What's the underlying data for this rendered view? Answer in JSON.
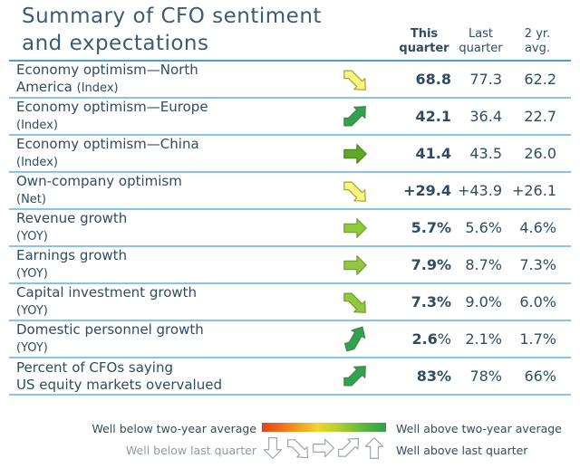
{
  "title": {
    "line1": "Summary of CFO sentiment",
    "line2": "and expectations"
  },
  "header": {
    "this_quarter": "This\nquarter",
    "last_quarter": "Last\nquarter",
    "two_yr_avg": "2 yr.\navg."
  },
  "colors": {
    "title_text": "#3b5c77",
    "body_text": "#2e4d63",
    "header_rule": "#4a9fd4",
    "row_rule": "#8ac4ea",
    "muted_text": "#8e9ca9",
    "arrow_yellow": "#f8f67d",
    "arrow_green": "#2ea44d",
    "arrow_olive": "#5fa821",
    "arrow_yellow_green": "#92c83e"
  },
  "table": {
    "rows": [
      {
        "line1": "Economy optimism—North",
        "line2": "America",
        "note": "(Index)",
        "icon": {
          "name": "arrow-down-right-icon",
          "shape": "bent-down-right",
          "fill": "#f8f67d",
          "stroke": "#a2a23f",
          "rotate": 0
        },
        "tq": "68.8",
        "tq_suffix": "",
        "last": "77.3",
        "avg": "62.2"
      },
      {
        "line1": "Economy optimism—Europe",
        "line2": "",
        "note": "(Index)",
        "icon": {
          "name": "arrow-up-right-icon",
          "shape": "bent-up-right",
          "fill": "#2ea44d",
          "stroke": "#4d7d52",
          "rotate": 0
        },
        "tq": "42.1",
        "tq_suffix": "",
        "last": "36.4",
        "avg": "22.7"
      },
      {
        "line1": "Economy optimism—China",
        "line2": "",
        "note": "(Index)",
        "icon": {
          "name": "arrow-right-icon",
          "shape": "right",
          "fill": "#5fa821",
          "stroke": "#517f20",
          "rotate": 0
        },
        "tq": "41.4",
        "tq_suffix": "",
        "last": "43.5",
        "avg": "26.0"
      },
      {
        "line1": "Own-company optimism",
        "line2": "",
        "note": "(Net)",
        "icon": {
          "name": "arrow-down-right-icon",
          "shape": "bent-down-right",
          "fill": "#f8f67d",
          "stroke": "#a2a23f",
          "rotate": 0
        },
        "tq": "+29.4",
        "tq_suffix": "",
        "last": "+43.9",
        "avg": "+26.1"
      },
      {
        "line1": "Revenue growth",
        "line2": "",
        "note": "(YOY)",
        "icon": {
          "name": "arrow-right-icon",
          "shape": "right",
          "fill": "#92c83e",
          "stroke": "#6f9d33",
          "rotate": 0
        },
        "tq": "5.7%",
        "tq_suffix": "",
        "last": "5.6%",
        "avg": "4.6%"
      },
      {
        "line1": "Earnings growth",
        "line2": "",
        "note": "(YOY)",
        "icon": {
          "name": "arrow-right-icon",
          "shape": "right",
          "fill": "#92c83e",
          "stroke": "#6f9d33",
          "rotate": 0
        },
        "tq": "7.9%",
        "tq_suffix": "",
        "last": "8.7%",
        "avg": "7.3%"
      },
      {
        "line1": "Capital investment growth",
        "line2": "",
        "note": "(YOY)",
        "icon": {
          "name": "arrow-down-right-icon",
          "shape": "bent-down-right",
          "fill": "#92c83e",
          "stroke": "#6f9d33",
          "rotate": 0
        },
        "tq": "7.3%",
        "tq_suffix": "",
        "last": "9.0%",
        "avg": "6.0%"
      },
      {
        "line1": "Domestic personnel growth",
        "line2": "",
        "note": "(YOY)",
        "icon": {
          "name": "arrow-up-right-icon",
          "shape": "bent-up-right",
          "fill": "#2ea44d",
          "stroke": "#4d7d52",
          "rotate": -15
        },
        "tq": "2.6",
        "tq_suffix": "%",
        "last": "2.1%",
        "avg": "1.7%"
      },
      {
        "line1": "Percent of CFOs saying",
        "line2": "US equity markets overvalued",
        "note": "",
        "icon": {
          "name": "arrow-up-right-icon",
          "shape": "bent-up-right",
          "fill": "#2ea44d",
          "stroke": "#4d7d52",
          "rotate": 0
        },
        "tq": "83%",
        "tq_suffix": "",
        "last": "78%",
        "avg": "66%"
      }
    ]
  },
  "legend": {
    "row1_left": "Well below two-year average",
    "row1_right": "Well above two-year average",
    "row2_left": "Well below last quarter",
    "row2_right": "Well above last quarter",
    "gradient_stops": [
      {
        "c": "#e2401e",
        "p": 0
      },
      {
        "c": "#f08019",
        "p": 20
      },
      {
        "c": "#f2d22e",
        "p": 45
      },
      {
        "c": "#b6d22f",
        "p": 60
      },
      {
        "c": "#66b83a",
        "p": 80
      },
      {
        "c": "#2ca04b",
        "p": 100
      }
    ],
    "arrows": [
      {
        "name": "arrow-down-icon",
        "shape": "down",
        "fill": "#ffffff",
        "stroke": "#9aa3ab"
      },
      {
        "name": "arrow-down-right-icon",
        "shape": "bent-down-right",
        "fill": "#ffffff",
        "stroke": "#9aa3ab"
      },
      {
        "name": "arrow-right-icon",
        "shape": "right",
        "fill": "#ffffff",
        "stroke": "#9aa3ab"
      },
      {
        "name": "arrow-up-right-icon",
        "shape": "bent-up-right",
        "fill": "#ffffff",
        "stroke": "#9aa3ab"
      },
      {
        "name": "arrow-up-icon",
        "shape": "up",
        "fill": "#ffffff",
        "stroke": "#9aa3ab"
      }
    ]
  }
}
